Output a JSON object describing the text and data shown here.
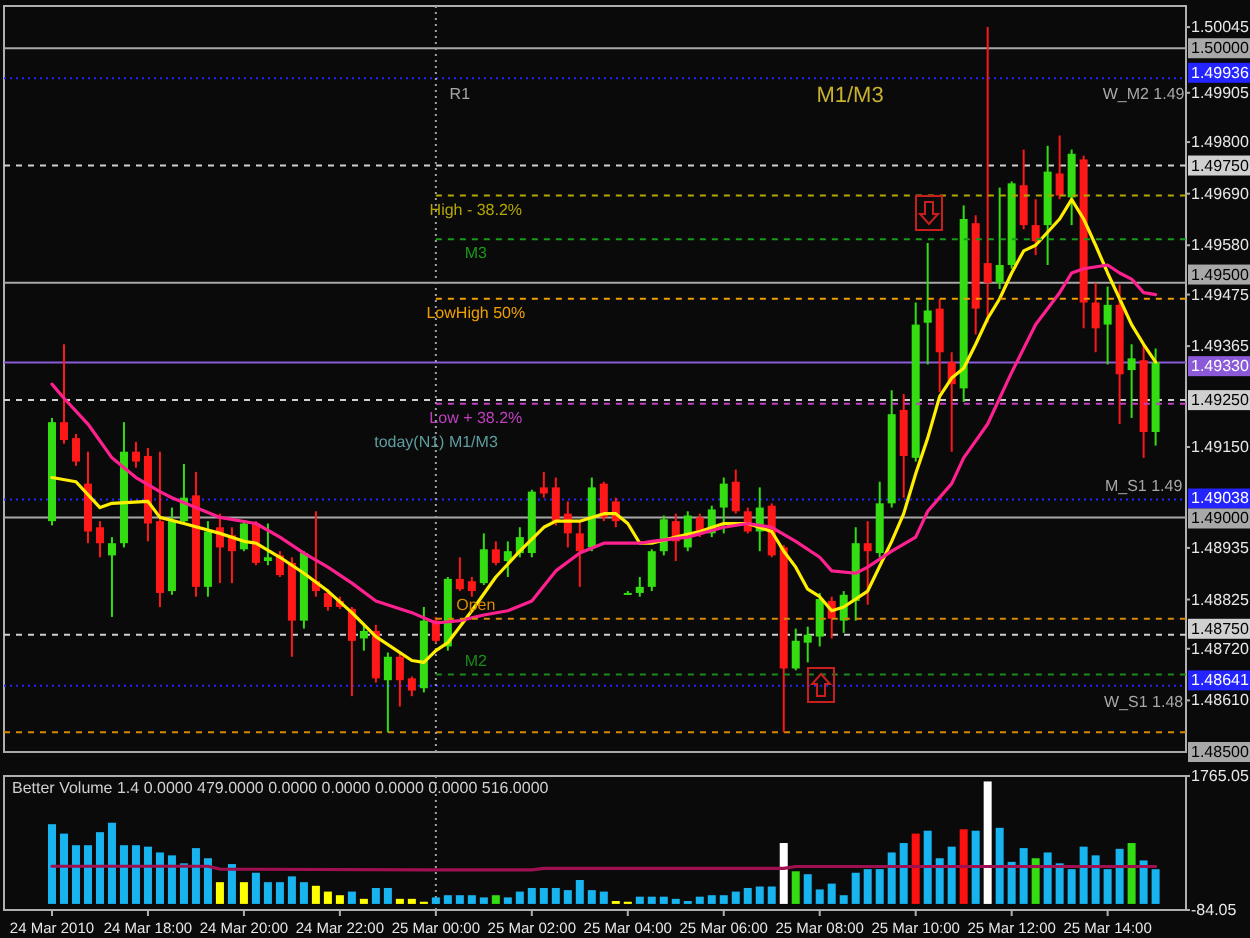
{
  "chart_data": [
    {
      "type": "candlestick",
      "x": [
        "2010-03-24T16:00",
        "2010-03-24T16:15",
        "2010-03-24T16:30",
        "2010-03-24T16:45",
        "2010-03-24T17:00",
        "2010-03-24T17:15",
        "2010-03-24T17:30",
        "2010-03-24T17:45",
        "2010-03-24T18:00",
        "2010-03-24T18:15",
        "2010-03-24T18:30",
        "2010-03-24T18:45",
        "2010-03-24T19:00",
        "2010-03-24T19:15",
        "2010-03-24T19:30",
        "2010-03-24T19:45",
        "2010-03-24T20:00",
        "2010-03-24T20:15",
        "2010-03-24T20:30",
        "2010-03-24T20:45",
        "2010-03-24T21:00",
        "2010-03-24T21:15",
        "2010-03-24T21:30",
        "2010-03-24T21:45",
        "2010-03-24T22:00",
        "2010-03-24T22:15",
        "2010-03-24T22:30",
        "2010-03-24T22:45",
        "2010-03-24T23:00",
        "2010-03-24T23:15",
        "2010-03-24T23:30",
        "2010-03-24T23:45",
        "2010-03-25T00:00",
        "2010-03-25T00:15",
        "2010-03-25T00:30",
        "2010-03-25T00:45",
        "2010-03-25T01:00",
        "2010-03-25T01:15",
        "2010-03-25T01:30",
        "2010-03-25T01:45",
        "2010-03-25T02:00",
        "2010-03-25T02:15",
        "2010-03-25T02:30",
        "2010-03-25T02:45",
        "2010-03-25T03:00",
        "2010-03-25T03:15",
        "2010-03-25T03:30",
        "2010-03-25T03:45",
        "2010-03-25T04:00",
        "2010-03-25T04:15",
        "2010-03-25T04:30",
        "2010-03-25T04:45",
        "2010-03-25T05:00",
        "2010-03-25T05:15",
        "2010-03-25T05:30",
        "2010-03-25T05:45",
        "2010-03-25T06:00",
        "2010-03-25T06:15",
        "2010-03-25T06:30",
        "2010-03-25T06:45",
        "2010-03-25T07:00",
        "2010-03-25T07:15",
        "2010-03-25T07:30",
        "2010-03-25T07:45",
        "2010-03-25T08:00",
        "2010-03-25T08:15",
        "2010-03-25T08:30",
        "2010-03-25T08:45",
        "2010-03-25T09:00",
        "2010-03-25T09:15",
        "2010-03-25T09:30",
        "2010-03-25T09:45",
        "2010-03-25T10:00",
        "2010-03-25T10:15",
        "2010-03-25T10:30",
        "2010-03-25T10:45",
        "2010-03-25T11:00",
        "2010-03-25T11:15",
        "2010-03-25T11:30",
        "2010-03-25T11:45",
        "2010-03-25T12:00",
        "2010-03-25T12:15",
        "2010-03-25T12:30",
        "2010-03-25T12:45",
        "2010-03-25T13:00",
        "2010-03-25T13:15",
        "2010-03-25T13:30",
        "2010-03-25T13:45",
        "2010-03-25T14:00",
        "2010-03-25T14:15",
        "2010-03-25T14:30",
        "2010-03-25T14:45",
        "2010-03-25T15:00"
      ],
      "ohlc": [
        [
          1.48992,
          1.49212,
          1.48983,
          1.49203
        ],
        [
          1.49203,
          1.49369,
          1.49157,
          1.49165
        ],
        [
          1.49169,
          1.49178,
          1.4911,
          1.49119
        ],
        [
          1.49072,
          1.4914,
          1.48945,
          1.4897
        ],
        [
          1.48979,
          1.48992,
          1.48915,
          1.48945
        ],
        [
          1.48919,
          1.48958,
          1.48788,
          1.48945
        ],
        [
          1.48945,
          1.49203,
          1.48936,
          1.4914
        ],
        [
          1.4914,
          1.49161,
          1.49106,
          1.49119
        ],
        [
          1.49131,
          1.49148,
          1.48949,
          1.48987
        ],
        [
          1.48992,
          1.4914,
          1.48809,
          1.48839
        ],
        [
          1.48843,
          1.49021,
          1.48835,
          1.48992
        ],
        [
          1.48992,
          1.49114,
          1.48987,
          1.49042
        ],
        [
          1.49047,
          1.49097,
          1.48831,
          1.48852
        ],
        [
          1.48852,
          1.48992,
          1.48831,
          1.4897
        ],
        [
          1.48979,
          1.49008,
          1.4886,
          1.48936
        ],
        [
          1.48962,
          1.48979,
          1.4886,
          1.48928
        ],
        [
          1.48932,
          1.48992,
          1.48928,
          1.48987
        ],
        [
          1.48987,
          1.48992,
          1.48898,
          1.48903
        ],
        [
          1.48907,
          1.48987,
          1.48898,
          1.48915
        ],
        [
          1.48919,
          1.48928,
          1.48873,
          1.48877
        ],
        [
          1.48903,
          1.48915,
          1.48703,
          1.4878
        ],
        [
          1.4878,
          1.48928,
          1.48763,
          1.48924
        ],
        [
          1.48864,
          1.49013,
          1.48831,
          1.48843
        ],
        [
          1.48839,
          1.48847,
          1.48801,
          1.48809
        ],
        [
          1.48822,
          1.48831,
          1.48805,
          1.48809
        ],
        [
          1.48805,
          1.48809,
          1.48619,
          1.48737
        ],
        [
          1.48742,
          1.48775,
          1.48716,
          1.48758
        ],
        [
          1.48758,
          1.48771,
          1.48648,
          1.48657
        ],
        [
          1.48653,
          1.48712,
          1.48542,
          1.48703
        ],
        [
          1.48703,
          1.48712,
          1.48597,
          1.48653
        ],
        [
          1.48657,
          1.48661,
          1.48619,
          1.48631
        ],
        [
          1.48636,
          1.48809,
          1.48627,
          1.4878
        ],
        [
          1.4878,
          1.48788,
          1.48733,
          1.48737
        ],
        [
          1.48725,
          1.48873,
          1.48716,
          1.48869
        ],
        [
          1.48869,
          1.48915,
          1.48843,
          1.48847
        ],
        [
          1.48864,
          1.48873,
          1.48831,
          1.48843
        ],
        [
          1.4886,
          1.48966,
          1.48856,
          1.48932
        ],
        [
          1.48932,
          1.48949,
          1.48898,
          1.48903
        ],
        [
          1.48907,
          1.48949,
          1.48873,
          1.48928
        ],
        [
          1.48924,
          1.48979,
          1.48915,
          1.48958
        ],
        [
          1.48924,
          1.49059,
          1.48915,
          1.49055
        ],
        [
          1.49064,
          1.49097,
          1.49042,
          1.49051
        ],
        [
          1.49064,
          1.49085,
          1.48983,
          1.48992
        ],
        [
          1.49008,
          1.49034,
          1.48936,
          1.48966
        ],
        [
          1.48966,
          1.48992,
          1.48852,
          1.48928
        ],
        [
          1.48936,
          1.49085,
          1.48928,
          1.49064
        ],
        [
          1.49072,
          1.49076,
          1.48992,
          1.49
        ],
        [
          1.49034,
          1.49042,
          1.48979,
          1.48992
        ],
        [
          1.48839,
          1.48843,
          1.48835,
          1.48839
        ],
        [
          1.48839,
          1.48873,
          1.48831,
          1.48852
        ],
        [
          1.48852,
          1.48932,
          1.48843,
          1.48928
        ],
        [
          1.48928,
          1.49004,
          1.48919,
          1.48996
        ],
        [
          1.48992,
          1.49008,
          1.48907,
          1.48949
        ],
        [
          1.48936,
          1.49013,
          1.48928,
          1.49004
        ],
        [
          1.49,
          1.49008,
          1.48958,
          1.4897
        ],
        [
          1.48966,
          1.49025,
          1.48958,
          1.49017
        ],
        [
          1.49021,
          1.49085,
          1.48966,
          1.49072
        ],
        [
          1.49076,
          1.49102,
          1.49008,
          1.49013
        ],
        [
          1.49013,
          1.49021,
          1.48966,
          1.4897
        ],
        [
          1.4897,
          1.49064,
          1.48928,
          1.49021
        ],
        [
          1.49025,
          1.4903,
          1.48915,
          1.48919
        ],
        [
          1.48936,
          1.48941,
          1.48542,
          1.48678
        ],
        [
          1.48678,
          1.48763,
          1.48674,
          1.48737
        ],
        [
          1.48733,
          1.48767,
          1.48691,
          1.4875
        ],
        [
          1.48746,
          1.48839,
          1.48725,
          1.48826
        ],
        [
          1.48822,
          1.48831,
          1.48742,
          1.48784
        ],
        [
          1.4878,
          1.48843,
          1.48754,
          1.48835
        ],
        [
          1.48822,
          1.48979,
          1.4878,
          1.48945
        ],
        [
          1.48945,
          1.48992,
          1.48814,
          1.48928
        ],
        [
          1.48924,
          1.49076,
          1.48915,
          1.4903
        ],
        [
          1.4903,
          1.49271,
          1.49021,
          1.4922
        ],
        [
          1.49229,
          1.49263,
          1.49042,
          1.49131
        ],
        [
          1.49127,
          1.49458,
          1.49119,
          1.49411
        ],
        [
          1.49415,
          1.49585,
          1.49326,
          1.49441
        ],
        [
          1.49445,
          1.49466,
          1.49267,
          1.49352
        ],
        [
          1.49331,
          1.49352,
          1.4914,
          1.49284
        ],
        [
          1.49275,
          1.49665,
          1.49246,
          1.49636
        ],
        [
          1.49627,
          1.49644,
          1.4939,
          1.49445
        ],
        [
          1.49542,
          1.50045,
          1.49415,
          1.495
        ],
        [
          1.495,
          1.49703,
          1.49487,
          1.49538
        ],
        [
          1.49538,
          1.49716,
          1.4953,
          1.49712
        ],
        [
          1.49708,
          1.49784,
          1.49614,
          1.49623
        ],
        [
          1.49623,
          1.49678,
          1.49559,
          1.49589
        ],
        [
          1.49623,
          1.49792,
          1.49538,
          1.49737
        ],
        [
          1.49733,
          1.49814,
          1.49678,
          1.49686
        ],
        [
          1.49682,
          1.49784,
          1.49623,
          1.49775
        ],
        [
          1.49763,
          1.49771,
          1.49403,
          1.49458
        ],
        [
          1.49458,
          1.495,
          1.49352,
          1.49403
        ],
        [
          1.49411,
          1.49492,
          1.49326,
          1.49453
        ],
        [
          1.49453,
          1.49496,
          1.49199,
          1.49305
        ],
        [
          1.49314,
          1.49369,
          1.49212,
          1.49339
        ],
        [
          1.49335,
          1.49369,
          1.49127,
          1.49182
        ],
        [
          1.49182,
          1.4936,
          1.49153,
          1.49331
        ]
      ],
      "colors": [
        "#33dd11",
        "#ff1818",
        "#ff1818",
        "#ff1818",
        "#ff1818",
        "#33dd11",
        "#33dd11",
        "#ff1818",
        "#ff1818",
        "#ff1818",
        "#33dd11",
        "#33dd11",
        "#ff1818",
        "#33dd11",
        "#ff1818",
        "#ff1818",
        "#33dd11",
        "#ff1818",
        "#33dd11",
        "#ff1818",
        "#ff1818",
        "#33dd11",
        "#ff1818",
        "#ff1818",
        "#ff1818",
        "#ff1818",
        "#33dd11",
        "#ff1818",
        "#33dd11",
        "#ff1818",
        "#ff1818",
        "#33dd11",
        "#ff1818",
        "#33dd11",
        "#ff1818",
        "#ff1818",
        "#33dd11",
        "#ff1818",
        "#33dd11",
        "#33dd11",
        "#33dd11",
        "#ff1818",
        "#ff1818",
        "#ff1818",
        "#ff1818",
        "#33dd11",
        "#ff1818",
        "#ff1818",
        "#33dd11",
        "#33dd11",
        "#33dd11",
        "#33dd11",
        "#ff1818",
        "#33dd11",
        "#ff1818",
        "#33dd11",
        "#33dd11",
        "#ff1818",
        "#ff1818",
        "#33dd11",
        "#ff1818",
        "#ff1818",
        "#33dd11",
        "#33dd11",
        "#33dd11",
        "#ff1818",
        "#33dd11",
        "#33dd11",
        "#ff1818",
        "#33dd11",
        "#33dd11",
        "#ff1818",
        "#33dd11",
        "#33dd11",
        "#ff1818",
        "#ff1818",
        "#33dd11",
        "#ff1818",
        "#ff1818",
        "#33dd11",
        "#33dd11",
        "#ff1818",
        "#ff1818",
        "#33dd11",
        "#ff1818",
        "#33dd11",
        "#ff1818",
        "#ff1818",
        "#33dd11",
        "#ff1818",
        "#33dd11",
        "#ff1818",
        "#33dd11"
      ],
      "xlim": [
        "2010-03-24T15:00",
        "2010-03-25T15:38"
      ],
      "ylim": [
        1.485,
        1.5009
      ],
      "yticks": [
        1.50045,
        1.49905,
        {
          "value": 1.498,
          "label": "1.49800"
        },
        {
          "value": 1.4969,
          "label": "1.49690"
        },
        {
          "value": 1.4958,
          "label": "1.49580"
        },
        1.49475,
        1.49365,
        {
          "value": 1.4915,
          "label": "1.49150"
        },
        1.48935,
        1.48825,
        {
          "value": 1.4872,
          "label": "1.48720"
        },
        {
          "value": 1.4861,
          "label": "1.48610"
        }
      ],
      "tick_labels": "y",
      "series": [
        {
          "type": "line",
          "color": "#ffee00",
          "x": [
            "2010-03-24T16:00",
            "2010-03-24T16:30",
            "2010-03-24T17:00",
            "2010-03-24T17:15",
            "2010-03-24T18:00",
            "2010-03-24T18:15",
            "2010-03-24T18:45",
            "2010-03-24T19:30",
            "2010-03-24T20:00",
            "2010-03-24T20:15",
            "2010-03-24T20:45",
            "2010-03-24T21:15",
            "2010-03-24T21:45",
            "2010-03-24T22:15",
            "2010-03-24T22:45",
            "2010-03-24T23:30",
            "2010-03-24T23:45",
            "2010-03-25T00:00",
            "2010-03-25T00:15",
            "2010-03-25T00:30",
            "2010-03-25T00:45",
            "2010-03-25T01:15",
            "2010-03-25T01:45",
            "2010-03-25T02:15",
            "2010-03-25T02:30",
            "2010-03-25T03:00",
            "2010-03-25T03:30",
            "2010-03-25T03:45",
            "2010-03-25T04:00",
            "2010-03-25T04:15",
            "2010-03-25T04:30",
            "2010-03-25T05:00",
            "2010-03-25T05:30",
            "2010-03-25T06:00",
            "2010-03-25T06:30",
            "2010-03-25T07:00",
            "2010-03-25T07:15",
            "2010-03-25T07:30",
            "2010-03-25T07:45",
            "2010-03-25T08:00",
            "2010-03-25T08:15",
            "2010-03-25T08:30",
            "2010-03-25T09:00",
            "2010-03-25T09:30",
            "2010-03-25T09:45",
            "2010-03-25T10:00",
            "2010-03-25T10:15",
            "2010-03-25T10:30",
            "2010-03-25T10:45",
            "2010-03-25T11:00",
            "2010-03-25T11:15",
            "2010-03-25T11:30",
            "2010-03-25T11:45",
            "2010-03-25T12:00",
            "2010-03-25T12:15",
            "2010-03-25T12:30",
            "2010-03-25T13:00",
            "2010-03-25T13:15",
            "2010-03-25T13:30",
            "2010-03-25T13:45",
            "2010-03-25T14:00",
            "2010-03-25T14:15",
            "2010-03-25T14:30",
            "2010-03-25T14:45",
            "2010-03-25T15:00"
          ],
          "values": [
            1.49085,
            1.49076,
            1.49021,
            1.4903,
            1.49034,
            1.49,
            1.48987,
            1.48966,
            1.48949,
            1.48945,
            1.48915,
            1.48881,
            1.48843,
            1.48797,
            1.48746,
            1.48695,
            1.48691,
            1.48716,
            1.48733,
            1.48767,
            1.48801,
            1.48873,
            1.48928,
            1.48979,
            1.48992,
            1.48992,
            1.49008,
            1.49008,
            1.48987,
            1.48945,
            1.48945,
            1.48958,
            1.4897,
            1.48987,
            1.48987,
            1.4897,
            1.48928,
            1.48894,
            1.48847,
            1.48831,
            1.48801,
            1.48809,
            1.48843,
            1.48949,
            1.49008,
            1.49093,
            1.49169,
            1.49258,
            1.49297,
            1.49318,
            1.49369,
            1.49424,
            1.49466,
            1.49521,
            1.49568,
            1.4958,
            1.49636,
            1.49678,
            1.49636,
            1.4958,
            1.49521,
            1.49466,
            1.49411,
            1.49369,
            1.49331
          ]
        },
        {
          "type": "line",
          "color": "#ff2090",
          "x": [
            "2010-03-24T16:00",
            "2010-03-24T16:15",
            "2010-03-24T16:45",
            "2010-03-24T17:15",
            "2010-03-24T17:45",
            "2010-03-24T18:15",
            "2010-03-24T18:30",
            "2010-03-24T19:30",
            "2010-03-24T20:15",
            "2010-03-24T20:45",
            "2010-03-24T21:15",
            "2010-03-24T21:45",
            "2010-03-24T22:15",
            "2010-03-24T22:45",
            "2010-03-24T23:30",
            "2010-03-25T00:00",
            "2010-03-25T00:30",
            "2010-03-25T01:00",
            "2010-03-25T01:30",
            "2010-03-25T02:00",
            "2010-03-25T02:30",
            "2010-03-25T03:00",
            "2010-03-25T03:30",
            "2010-03-25T04:15",
            "2010-03-25T04:30",
            "2010-03-25T05:15",
            "2010-03-25T06:00",
            "2010-03-25T06:30",
            "2010-03-25T07:00",
            "2010-03-25T07:30",
            "2010-03-25T08:00",
            "2010-03-25T08:15",
            "2010-03-25T08:45",
            "2010-03-25T09:00",
            "2010-03-25T09:30",
            "2010-03-25T10:00",
            "2010-03-25T10:15",
            "2010-03-25T10:45",
            "2010-03-25T11:00",
            "2010-03-25T11:30",
            "2010-03-25T12:00",
            "2010-03-25T12:30",
            "2010-03-25T13:00",
            "2010-03-25T13:15",
            "2010-03-25T13:30",
            "2010-03-25T14:00",
            "2010-03-25T14:15",
            "2010-03-25T14:30",
            "2010-03-25T14:45",
            "2010-03-25T15:00"
          ],
          "values": [
            1.49284,
            1.49254,
            1.49199,
            1.49127,
            1.49085,
            1.49055,
            1.49042,
            1.49,
            1.48987,
            1.48958,
            1.48924,
            1.48894,
            1.4886,
            1.48822,
            1.48797,
            1.48775,
            1.4878,
            1.48792,
            1.48801,
            1.48822,
            1.48886,
            1.48924,
            1.48945,
            1.48945,
            1.48949,
            1.48958,
            1.48979,
            1.48987,
            1.48979,
            1.48949,
            1.48915,
            1.48886,
            1.48881,
            1.48894,
            1.48928,
            1.48958,
            1.49013,
            1.49072,
            1.49127,
            1.49199,
            1.49309,
            1.49411,
            1.49479,
            1.49521,
            1.4953,
            1.49538,
            1.49521,
            1.49508,
            1.49479,
            1.49475
          ]
        },
        {
          "type": "line",
          "name": "High - 38.2%",
          "color": "#b4a800",
          "line_style": "dashed",
          "x": [
            "2010-03-25T00:00",
            "2010-03-25T15:38"
          ],
          "values": [
            1.49686,
            1.49686
          ]
        },
        {
          "type": "line",
          "name": "M3",
          "color": "#1a9a1a",
          "line_style": "dashed",
          "x": [
            "2010-03-25T00:00",
            "2010-03-25T15:38"
          ],
          "values": [
            1.49593,
            1.49593
          ]
        },
        {
          "type": "line",
          "name": "LowHigh 50%",
          "color": "#f0a000",
          "line_style": "dashed",
          "x": [
            "2010-03-25T00:00",
            "2010-03-25T15:38"
          ],
          "values": [
            1.49466,
            1.49466
          ]
        },
        {
          "type": "line",
          "name": "Low + 38.2%",
          "color": "#c040c0",
          "line_style": "dashed",
          "x": [
            "2010-03-25T00:00",
            "2010-03-25T15:38"
          ],
          "values": [
            1.49242,
            1.49242
          ]
        },
        {
          "type": "line",
          "name": "Open",
          "color": "#d88a00",
          "line_style": "dashed",
          "x": [
            "2010-03-25T00:00",
            "2010-03-25T15:38"
          ],
          "values": [
            1.48784,
            1.48784
          ]
        },
        {
          "type": "line",
          "name": "M2",
          "color": "#1a8a1a",
          "line_style": "dashed",
          "x": [
            "2010-03-25T00:00",
            "2010-03-25T15:38"
          ],
          "values": [
            1.48665,
            1.48665
          ]
        }
      ],
      "ref_lines": [
        {
          "axis": "y",
          "value": 1.5,
          "label": "1.50000",
          "color": "#a8a8a8",
          "line_style": "solid"
        },
        {
          "axis": "y",
          "value": 1.49936,
          "label": "1.49936",
          "color": "#2424ff",
          "line_style": "dotted"
        },
        {
          "axis": "y",
          "value": 1.4975,
          "label": "1.49750",
          "color": "#d0d0d0",
          "line_style": "dashed"
        },
        {
          "axis": "y",
          "value": 1.495,
          "label": "1.49500",
          "color": "#a8a8a8",
          "line_style": "solid"
        },
        {
          "axis": "y",
          "value": 1.4933,
          "label": "1.49330",
          "color": "#8c5ad8",
          "line_style": "solid"
        },
        {
          "axis": "y",
          "value": 1.4925,
          "label": "1.49250",
          "color": "#d0d0d0",
          "line_style": "dashed"
        },
        {
          "axis": "y",
          "value": 1.49038,
          "label": "1.49038",
          "color": "#2424ff",
          "line_style": "dotted"
        },
        {
          "axis": "y",
          "value": 1.49,
          "label": "1.49000",
          "color": "#a8a8a8",
          "line_style": "solid"
        },
        {
          "axis": "y",
          "value": 1.4875,
          "label": "1.48750",
          "color": "#d0d0d0",
          "line_style": "dashed"
        },
        {
          "axis": "y",
          "value": 1.48641,
          "label": "1.48641",
          "color": "#2424ff",
          "line_style": "dotted"
        },
        {
          "axis": "y",
          "value": 1.48542,
          "color": "#d88a00",
          "line_style": "dashed"
        },
        {
          "axis": "y",
          "value": 1.485,
          "label": "1.48500",
          "color": "#a8a8a8",
          "line_style": "solid"
        },
        {
          "axis": "x",
          "value": "2010-03-25T00:00",
          "color": "#a0a0a0",
          "line_style": "dotted"
        }
      ],
      "annotations": [
        "M1/M3",
        {
          "text": "R1",
          "x": "2010-03-25T00:30",
          "y": 1.49936
        },
        "today(N1) M1/M3",
        {
          "text": "W_M2 1.49",
          "x": "2010-03-25T14:45",
          "y": 1.49936
        },
        {
          "text": "M_S1 1.49",
          "x": "2010-03-25T14:45",
          "y": 1.49038
        },
        {
          "text": "W_S1 1.48",
          "x": "2010-03-25T14:45",
          "y": 1.48641
        }
      ]
    },
    {
      "type": "bar",
      "title": "Better Volume 1.4 0.0000 479.0000 0.0000 0.0000 0.0000 0.0000 516.0000",
      "x": [
        "2010-03-24T16:00",
        "2010-03-24T16:15",
        "2010-03-24T16:30",
        "2010-03-24T16:45",
        "2010-03-24T17:00",
        "2010-03-24T17:15",
        "2010-03-24T17:30",
        "2010-03-24T17:45",
        "2010-03-24T18:00",
        "2010-03-24T18:15",
        "2010-03-24T18:30",
        "2010-03-24T18:45",
        "2010-03-24T19:00",
        "2010-03-24T19:15",
        "2010-03-24T19:30",
        "2010-03-24T19:45",
        "2010-03-24T20:00",
        "2010-03-24T20:15",
        "2010-03-24T20:30",
        "2010-03-24T20:45",
        "2010-03-24T21:00",
        "2010-03-24T21:15",
        "2010-03-24T21:30",
        "2010-03-24T21:45",
        "2010-03-24T22:00",
        "2010-03-24T22:15",
        "2010-03-24T22:30",
        "2010-03-24T22:45",
        "2010-03-24T23:00",
        "2010-03-24T23:15",
        "2010-03-24T23:30",
        "2010-03-24T23:45",
        "2010-03-25T00:00",
        "2010-03-25T00:15",
        "2010-03-25T00:30",
        "2010-03-25T00:45",
        "2010-03-25T01:00",
        "2010-03-25T01:15",
        "2010-03-25T01:30",
        "2010-03-25T01:45",
        "2010-03-25T02:00",
        "2010-03-25T02:15",
        "2010-03-25T02:30",
        "2010-03-25T02:45",
        "2010-03-25T03:00",
        "2010-03-25T03:15",
        "2010-03-25T03:30",
        "2010-03-25T03:45",
        "2010-03-25T04:00",
        "2010-03-25T04:15",
        "2010-03-25T04:30",
        "2010-03-25T04:45",
        "2010-03-25T05:00",
        "2010-03-25T05:15",
        "2010-03-25T05:30",
        "2010-03-25T05:45",
        "2010-03-25T06:00",
        "2010-03-25T06:15",
        "2010-03-25T06:30",
        "2010-03-25T06:45",
        "2010-03-25T07:00",
        "2010-03-25T07:15",
        "2010-03-25T07:30",
        "2010-03-25T07:45",
        "2010-03-25T08:00",
        "2010-03-25T08:15",
        "2010-03-25T08:30",
        "2010-03-25T08:45",
        "2010-03-25T09:00",
        "2010-03-25T09:15",
        "2010-03-25T09:30",
        "2010-03-25T09:45",
        "2010-03-25T10:00",
        "2010-03-25T10:15",
        "2010-03-25T10:30",
        "2010-03-25T10:45",
        "2010-03-25T11:00",
        "2010-03-25T11:15",
        "2010-03-25T11:30",
        "2010-03-25T11:45",
        "2010-03-25T12:00",
        "2010-03-25T12:15",
        "2010-03-25T12:30",
        "2010-03-25T12:45",
        "2010-03-25T13:00",
        "2010-03-25T13:15",
        "2010-03-25T13:30",
        "2010-03-25T13:45",
        "2010-03-25T14:00",
        "2010-03-25T14:15",
        "2010-03-25T14:30",
        "2010-03-25T14:45",
        "2010-03-25T15:00"
      ],
      "series": [
        {
          "colors": [
            "#18b4f0",
            "#18b4f0",
            "#18b4f0",
            "#18b4f0",
            "#18b4f0",
            "#18b4f0",
            "#18b4f0",
            "#18b4f0",
            "#18b4f0",
            "#18b4f0",
            "#18b4f0",
            "#18b4f0",
            "#18b4f0",
            "#18b4f0",
            "#ffff00",
            "#18b4f0",
            "#ffff00",
            "#18b4f0",
            "#18b4f0",
            "#18b4f0",
            "#18b4f0",
            "#18b4f0",
            "#ffff00",
            "#ffff00",
            "#ffff00",
            "#18b4f0",
            "#ffff00",
            "#18b4f0",
            "#18b4f0",
            "#ffff00",
            "#ffff00",
            "#ffff00",
            "#18b4f0",
            "#18b4f0",
            "#18b4f0",
            "#18b4f0",
            "#18b4f0",
            "#33dd11",
            "#18b4f0",
            "#18b4f0",
            "#18b4f0",
            "#18b4f0",
            "#18b4f0",
            "#18b4f0",
            "#18b4f0",
            "#18b4f0",
            "#18b4f0",
            "#ffff00",
            "#ffff00",
            "#18b4f0",
            "#18b4f0",
            "#18b4f0",
            "#18b4f0",
            "#18b4f0",
            "#18b4f0",
            "#18b4f0",
            "#18b4f0",
            "#18b4f0",
            "#18b4f0",
            "#18b4f0",
            "#18b4f0",
            "#ffffff",
            "#33dd11",
            "#18b4f0",
            "#18b4f0",
            "#18b4f0",
            "#18b4f0",
            "#18b4f0",
            "#18b4f0",
            "#18b4f0",
            "#18b4f0",
            "#18b4f0",
            "#ff1010",
            "#18b4f0",
            "#18b4f0",
            "#18b4f0",
            "#ff1010",
            "#18b4f0",
            "#ffffff",
            "#18b4f0",
            "#18b4f0",
            "#18b4f0",
            "#33dd11",
            "#18b4f0",
            "#18b4f0",
            "#18b4f0",
            "#18b4f0",
            "#18b4f0",
            "#18b4f0",
            "#18b4f0",
            "#33dd11",
            "#18b4f0",
            "#18b4f0"
          ],
          "values": [
            1100,
            970,
            810,
            810,
            990,
            1120,
            810,
            810,
            790,
            710,
            670,
            560,
            770,
            630,
            300,
            550,
            300,
            430,
            300,
            300,
            380,
            300,
            250,
            170,
            120,
            170,
            70,
            220,
            220,
            70,
            70,
            30,
            90,
            120,
            120,
            120,
            90,
            120,
            90,
            170,
            220,
            220,
            220,
            190,
            330,
            190,
            170,
            40,
            30,
            100,
            100,
            100,
            70,
            40,
            100,
            120,
            120,
            170,
            220,
            240,
            240,
            840,
            450,
            410,
            200,
            280,
            120,
            430,
            480,
            480,
            710,
            840,
            970,
            1010,
            630,
            790,
            1030,
            1010,
            1690,
            1050,
            580,
            770,
            630,
            710,
            560,
            480,
            790,
            670,
            480,
            760,
            840,
            600,
            479
          ]
        },
        {
          "type": "line",
          "color": "#a01050",
          "x": [
            "2010-03-24T16:00",
            "2010-03-24T19:15",
            "2010-03-24T19:30",
            "2010-03-24T23:45",
            "2010-03-25T02:00",
            "2010-03-25T02:15",
            "2010-03-25T07:15",
            "2010-03-25T07:30",
            "2010-03-25T15:00"
          ],
          "values": [
            520,
            520,
            480,
            470,
            470,
            490,
            490,
            516,
            516
          ]
        }
      ],
      "xlim": [
        "2010-03-24T15:00",
        "2010-03-25T15:38"
      ],
      "xticks": [
        {
          "value": "2010-03-24T16:00",
          "label": "24 Mar 2010"
        },
        {
          "value": "2010-03-24T18:00",
          "label": "24 Mar 18:00"
        },
        {
          "value": "2010-03-24T20:00",
          "label": "24 Mar 20:00"
        },
        {
          "value": "2010-03-24T22:00",
          "label": "24 Mar 22:00"
        },
        {
          "value": "2010-03-25T00:00",
          "label": "25 Mar 00:00"
        },
        {
          "value": "2010-03-25T02:00",
          "label": "25 Mar 02:00"
        },
        {
          "value": "2010-03-25T04:00",
          "label": "25 Mar 04:00"
        },
        {
          "value": "2010-03-25T06:00",
          "label": "25 Mar 06:00"
        },
        {
          "value": "2010-03-25T08:00",
          "label": "25 Mar 08:00"
        },
        {
          "value": "2010-03-25T10:00",
          "label": "25 Mar 10:00"
        },
        {
          "value": "2010-03-25T12:00",
          "label": "25 Mar 12:00"
        },
        {
          "value": "2010-03-25T14:00",
          "label": "25 Mar 14:00"
        }
      ],
      "ylim": [
        -84.05,
        1765.05
      ],
      "yticks": [
        1765.05,
        -84.05
      ],
      "ref_lines": [
        {
          "axis": "x",
          "value": "2010-03-25T00:00",
          "color": "#a0a0a0",
          "line_style": "dotted"
        }
      ]
    }
  ]
}
